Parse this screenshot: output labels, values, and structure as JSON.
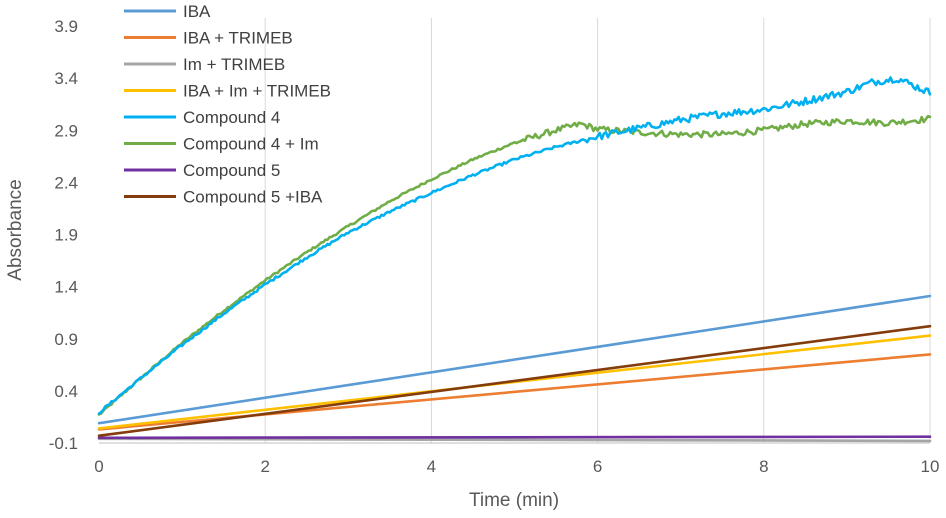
{
  "chart_data": {
    "type": "line",
    "title": "",
    "xlabel": "Time (min)",
    "ylabel": "Absorbance",
    "xlim": [
      0,
      10
    ],
    "ylim": [
      -0.1,
      3.9
    ],
    "xticks": [
      0,
      2,
      4,
      6,
      8,
      10
    ],
    "yticks": [
      -0.1,
      0.4,
      0.9,
      1.4,
      1.9,
      2.4,
      2.9,
      3.4,
      3.9
    ],
    "ytick_labels": [
      "-0.1",
      "0.4",
      "0.9",
      "1.4",
      "1.9",
      "2.4",
      "2.9",
      "3.4",
      "3.9"
    ],
    "grid": "vertical",
    "legend": "top-left",
    "series": [
      {
        "name": "IBA",
        "color": "#5B9BD5",
        "x": [
          0,
          10
        ],
        "y": [
          0.09,
          1.31
        ]
      },
      {
        "name": "IBA + TRIMEB",
        "color": "#ED7D31",
        "x": [
          0,
          10
        ],
        "y": [
          0.03,
          0.75
        ]
      },
      {
        "name": "Im + TRIMEB",
        "color": "#A5A5A5",
        "x": [
          0,
          10
        ],
        "y": [
          -0.06,
          -0.08
        ]
      },
      {
        "name": "IBA + Im + TRIMEB",
        "color": "#FFC000",
        "x": [
          0,
          10
        ],
        "y": [
          0.04,
          0.93
        ]
      },
      {
        "name": "Compound 4",
        "color": "#00B0F0",
        "noise": 0.035,
        "noise_start": 5.8,
        "x": [
          0,
          0.5,
          1,
          1.5,
          2,
          2.5,
          3,
          3.5,
          4,
          4.5,
          5,
          5.5,
          6,
          6.5,
          7,
          7.5,
          8,
          8.5,
          9,
          9.3,
          9.6,
          10
        ],
        "y": [
          0.19,
          0.52,
          0.84,
          1.14,
          1.42,
          1.68,
          1.92,
          2.12,
          2.3,
          2.47,
          2.62,
          2.74,
          2.84,
          2.92,
          3.0,
          3.06,
          3.1,
          3.18,
          3.27,
          3.36,
          3.4,
          3.26
        ]
      },
      {
        "name": "Compound 4 + Im",
        "color": "#70AD47",
        "noise": 0.03,
        "noise_start": 5.0,
        "x": [
          0,
          0.5,
          1,
          1.5,
          2,
          2.5,
          3,
          3.5,
          4,
          4.5,
          5,
          5.5,
          5.8,
          6,
          6.5,
          7,
          7.5,
          8,
          8.5,
          9,
          9.5,
          10
        ],
        "y": [
          0.17,
          0.52,
          0.86,
          1.17,
          1.46,
          1.73,
          1.98,
          2.22,
          2.43,
          2.62,
          2.78,
          2.9,
          2.96,
          2.91,
          2.88,
          2.86,
          2.86,
          2.9,
          2.96,
          2.99,
          2.97,
          3.01
        ]
      },
      {
        "name": "Compound 5",
        "color": "#7030A0",
        "x": [
          0,
          10
        ],
        "y": [
          -0.05,
          -0.04
        ]
      },
      {
        "name": "Compound 5 +IBA",
        "color": "#843C0C",
        "x": [
          0,
          10
        ],
        "y": [
          -0.03,
          1.02
        ]
      }
    ]
  }
}
